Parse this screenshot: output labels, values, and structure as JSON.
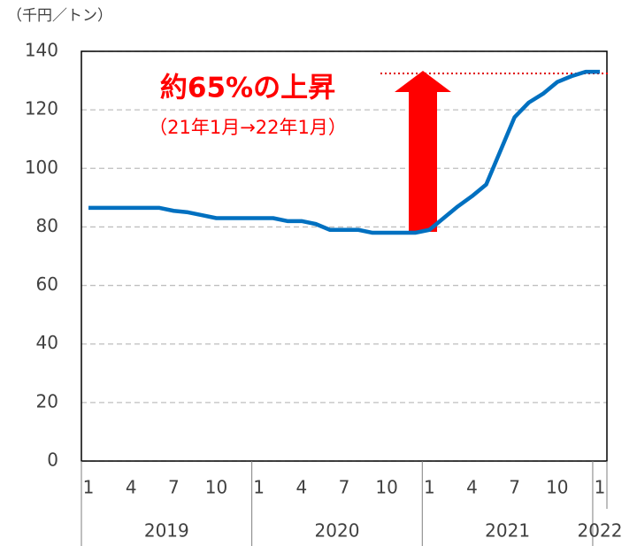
{
  "chart_data": {
    "type": "line",
    "unit_label": "（千円／トン）",
    "annotation": "約65%の上昇",
    "annotation_sub": "（21年1月→22年1月）",
    "categories": [
      "1",
      null,
      null,
      "4",
      null,
      null,
      "7",
      null,
      null,
      "10",
      null,
      null,
      "1",
      null,
      null,
      "4",
      null,
      null,
      "7",
      null,
      null,
      "10",
      null,
      null,
      "1",
      null,
      null,
      "4",
      null,
      null,
      "7",
      null,
      null,
      "10",
      null,
      null,
      "1"
    ],
    "years": [
      "2019",
      "2020",
      "2021",
      "2022"
    ],
    "series": [
      {
        "color": "#0070c0",
        "values": [
          86.5,
          86.5,
          86.5,
          86.5,
          86.5,
          86.5,
          85.5,
          85,
          84,
          83,
          83,
          83,
          83,
          83,
          82,
          82,
          81,
          79,
          79,
          79,
          78,
          78,
          78,
          78,
          79,
          83,
          87,
          90.5,
          94.5,
          106,
          117.5,
          122.5,
          125.5,
          129.5,
          131.5,
          133,
          133
        ]
      }
    ],
    "ylim": [
      0,
      140
    ],
    "yticks": [
      0,
      20,
      40,
      60,
      80,
      100,
      120,
      140
    ],
    "grid": true
  }
}
